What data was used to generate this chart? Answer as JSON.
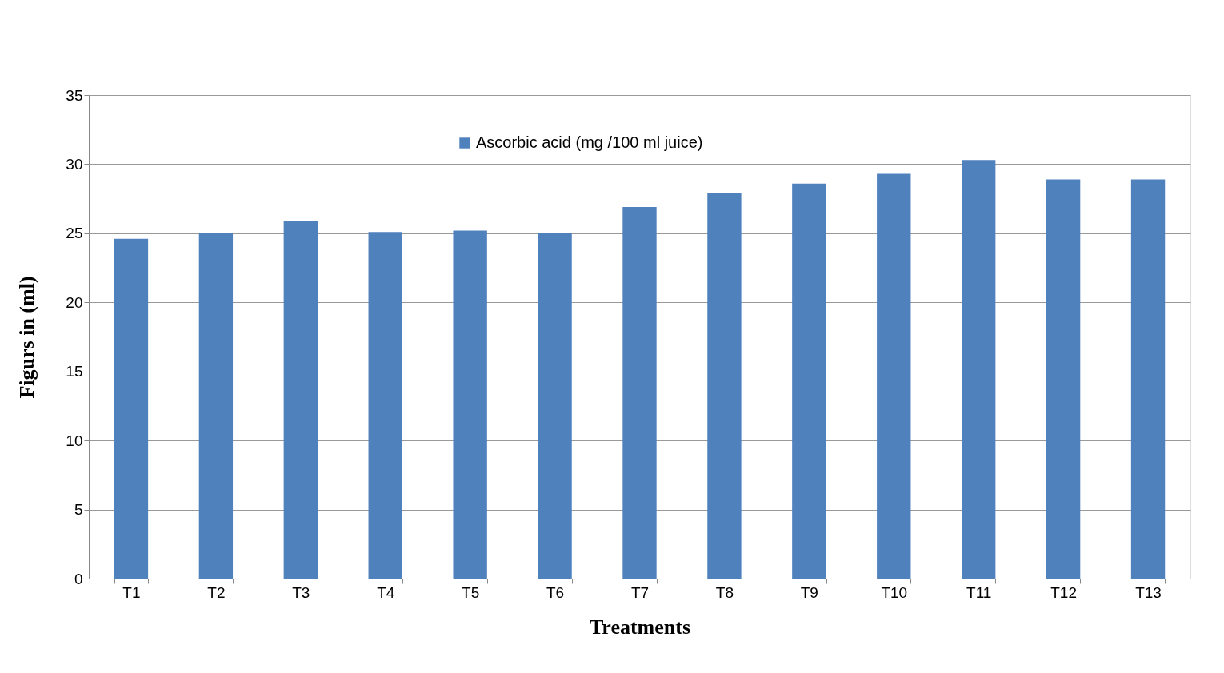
{
  "chart_data": {
    "type": "bar",
    "xlabel": "Treatments",
    "ylabel": "Figurs in  (ml)",
    "categories": [
      "T1",
      "T2",
      "T3",
      "T4",
      "T5",
      "T6",
      "T7",
      "T8",
      "T9",
      "T10",
      "T11",
      "T12",
      "T13"
    ],
    "series": [
      {
        "name": "Ascorbic acid (mg /100 ml juice)",
        "color": "#4f81bd",
        "values": [
          24.6,
          25.0,
          25.9,
          25.1,
          25.2,
          25.0,
          26.9,
          27.9,
          28.6,
          29.3,
          30.3,
          28.9,
          28.9
        ]
      }
    ],
    "ylim": [
      0,
      35
    ],
    "yticks": [
      0,
      5,
      10,
      15,
      20,
      25,
      30,
      35
    ],
    "grid": "y",
    "legend": "top"
  }
}
